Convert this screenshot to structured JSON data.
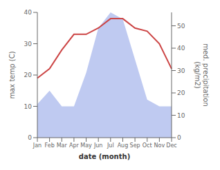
{
  "chart_data": {
    "type": "combo",
    "xlabel": "date (month)",
    "ylabel": "max temp (C)",
    "y2label": "med. precipitation\n(kg/m2)",
    "categories": [
      "Jan",
      "Feb",
      "Mar",
      "Apr",
      "May",
      "Jun",
      "Jul",
      "Aug",
      "Sep",
      "Oct",
      "Nov",
      "Dec"
    ],
    "series": [
      {
        "type": "area",
        "color": "#b8c4f0",
        "axis": "y2",
        "values": [
          15,
          21,
          14,
          14,
          29,
          49,
          56,
          53,
          35,
          17,
          14,
          14
        ]
      },
      {
        "type": "line",
        "color": "#cc4444",
        "values": [
          19,
          22,
          28,
          33,
          33,
          35,
          38,
          38,
          35,
          34,
          30,
          22
        ]
      }
    ],
    "ylim": [
      0,
      40
    ],
    "yticks": [
      0,
      10,
      20,
      30,
      40
    ],
    "y2lim": [
      0,
      56
    ],
    "y2ticks": [
      0,
      10,
      20,
      30,
      40,
      50
    ],
    "grid": false
  }
}
